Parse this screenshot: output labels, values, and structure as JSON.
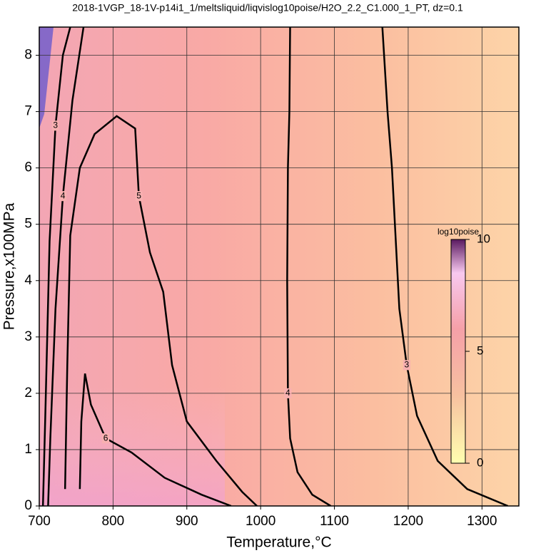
{
  "chart_data": {
    "type": "contour",
    "title": "2018-1VGP_18-1V-p14i1_1/meltsliquid/liqvislog10poise/H2O_2.2_C1.000_1_PT, dz=0.1",
    "x_label": "Temperature,°C",
    "y_label": "Pressure,x100MPa",
    "xlim": [
      700,
      1350
    ],
    "ylim": [
      0,
      8.5
    ],
    "xticks": [
      700,
      800,
      900,
      1000,
      1100,
      1200,
      1300
    ],
    "yticks": [
      0,
      1,
      2,
      3,
      4,
      5,
      6,
      7,
      8
    ],
    "grid": true,
    "colorbar": {
      "label": "log10poise",
      "lim": [
        0,
        10
      ],
      "ticks": [
        0,
        5,
        10
      ]
    },
    "contours": [
      {
        "level": 3,
        "x": [
          1165,
          1172,
          1178,
          1182,
          1188,
          1198,
          1212,
          1240,
          1280,
          1335
        ],
        "y": [
          8.5,
          7,
          6,
          5,
          3.5,
          2.5,
          1.6,
          0.8,
          0.3,
          0
        ]
      },
      {
        "level": 4,
        "x": [
          1040,
          1039,
          1037,
          1036,
          1037,
          1040,
          1050,
          1070,
          1095
        ],
        "y": [
          8.5,
          7,
          6,
          4,
          2,
          1.2,
          0.6,
          0.2,
          0
        ]
      },
      {
        "level": 5,
        "x": [
          735,
          738,
          742,
          755,
          775,
          805,
          830,
          835,
          850,
          868,
          880,
          900,
          940,
          975,
          995
        ],
        "y": [
          0.3,
          2.5,
          4.8,
          6,
          6.6,
          6.92,
          6.7,
          5.5,
          4.5,
          3.8,
          2.5,
          1.5,
          0.8,
          0.25,
          0
        ]
      },
      {
        "level": 6,
        "x": [
          755,
          757,
          762,
          770,
          790,
          825,
          870,
          920,
          960
        ],
        "y": [
          0.3,
          1.5,
          2.35,
          1.8,
          1.2,
          0.95,
          0.5,
          0.2,
          0
        ]
      },
      {
        "level": 4,
        "x": [
          712,
          715,
          722,
          732,
          745,
          760
        ],
        "y": [
          0,
          1.2,
          3.5,
          5.5,
          7.2,
          8.5
        ]
      },
      {
        "level": 3,
        "x": [
          705,
          708,
          714,
          722,
          732,
          742
        ],
        "y": [
          0,
          1.5,
          4.7,
          6.75,
          8,
          8.5
        ]
      }
    ]
  }
}
